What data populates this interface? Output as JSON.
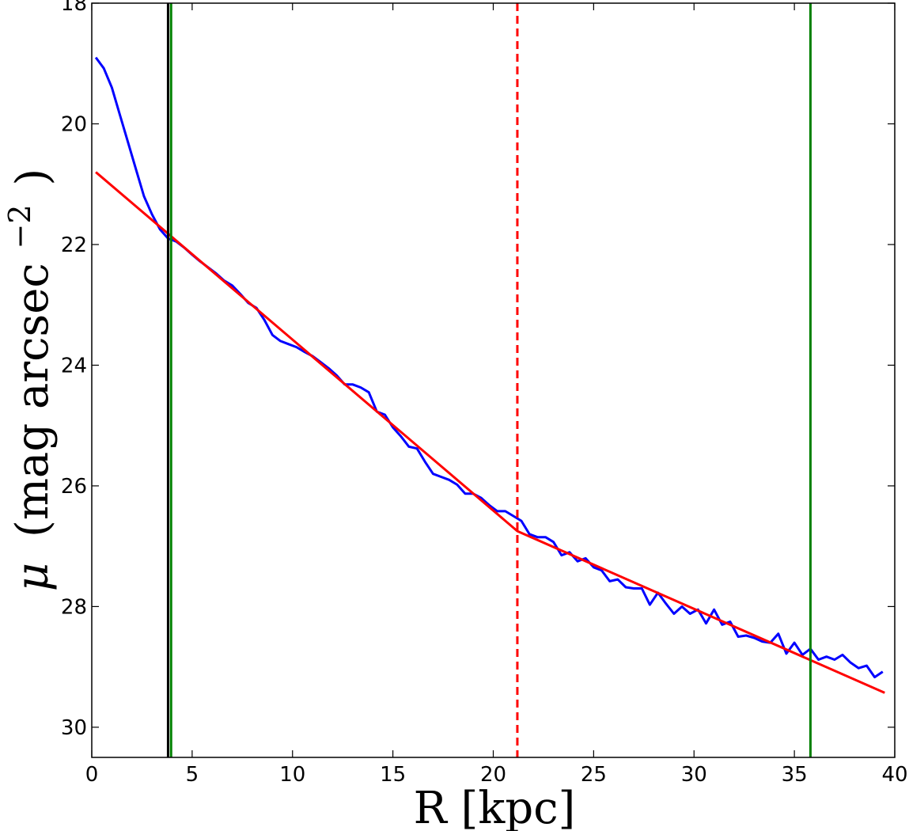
{
  "chart_data": {
    "type": "line",
    "xlabel": "R [kpc]",
    "ylabel": "μ (mag arcsec⁻²)",
    "ylabel_parts": {
      "symbol": "μ",
      "unit": "(mag arcsec",
      "exponent": "−2",
      "close": ")"
    },
    "xlim": [
      0,
      40
    ],
    "ylim": [
      30.5,
      18
    ],
    "y_inverted": true,
    "x_ticks": [
      0,
      5,
      10,
      15,
      20,
      25,
      30,
      35,
      40
    ],
    "y_ticks": [
      18,
      20,
      22,
      24,
      26,
      28,
      30
    ],
    "grid": false,
    "series": [
      {
        "color": "#0000ff",
        "x": [
          0.2,
          0.6,
          1.0,
          1.4,
          1.8,
          2.2,
          2.6,
          3.0,
          3.4,
          3.8,
          4.2,
          4.6,
          5.0,
          5.4,
          5.8,
          6.2,
          6.6,
          7.0,
          7.4,
          7.8,
          8.2,
          8.6,
          9.0,
          9.4,
          9.8,
          10.2,
          10.6,
          11.0,
          11.4,
          11.8,
          12.2,
          12.6,
          13.0,
          13.4,
          13.8,
          14.2,
          14.6,
          15.0,
          15.4,
          15.8,
          16.2,
          16.6,
          17.0,
          17.4,
          17.8,
          18.2,
          18.6,
          19.0,
          19.4,
          19.8,
          20.2,
          20.6,
          21.0,
          21.4,
          21.8,
          22.2,
          22.6,
          23.0,
          23.4,
          23.8,
          24.2,
          24.6,
          25.0,
          25.4,
          25.8,
          26.2,
          26.6,
          27.0,
          27.4,
          27.8,
          28.2,
          28.6,
          29.0,
          29.4,
          29.8,
          30.2,
          30.6,
          31.0,
          31.4,
          31.8,
          32.2,
          32.6,
          33.0,
          33.4,
          33.8,
          34.2,
          34.6,
          35.0,
          35.4,
          35.8,
          36.2,
          36.6,
          37.0,
          37.4,
          37.8,
          38.2,
          38.6,
          39.0,
          39.4
        ],
        "y": [
          18.9,
          19.08,
          19.4,
          19.85,
          20.3,
          20.75,
          21.2,
          21.5,
          21.75,
          21.9,
          21.95,
          22.05,
          22.17,
          22.28,
          22.38,
          22.48,
          22.6,
          22.68,
          22.82,
          22.97,
          23.05,
          23.25,
          23.5,
          23.6,
          23.65,
          23.7,
          23.78,
          23.85,
          23.95,
          24.05,
          24.17,
          24.32,
          24.32,
          24.37,
          24.45,
          24.77,
          24.82,
          25.03,
          25.18,
          25.35,
          25.38,
          25.6,
          25.8,
          25.85,
          25.9,
          25.98,
          26.13,
          26.13,
          26.2,
          26.32,
          26.42,
          26.42,
          26.5,
          26.58,
          26.8,
          26.85,
          26.85,
          26.93,
          27.15,
          27.1,
          27.25,
          27.2,
          27.35,
          27.4,
          27.58,
          27.55,
          27.68,
          27.7,
          27.7,
          27.97,
          27.77,
          27.95,
          28.12,
          28.0,
          28.12,
          28.05,
          28.28,
          28.05,
          28.3,
          28.25,
          28.5,
          28.48,
          28.52,
          28.58,
          28.6,
          28.45,
          28.78,
          28.6,
          28.8,
          28.7,
          28.88,
          28.83,
          28.88,
          28.8,
          28.93,
          29.02,
          28.98,
          29.17,
          29.08
        ]
      },
      {
        "color": "#ff0000",
        "x": [
          0.2,
          21.2,
          39.5
        ],
        "y": [
          20.8,
          26.75,
          29.43
        ]
      }
    ],
    "vertical_lines": [
      {
        "x": 3.8,
        "color": "#000000",
        "style": "solid"
      },
      {
        "x": 3.95,
        "color": "#008000",
        "style": "solid"
      },
      {
        "x": 21.2,
        "color": "#ff0000",
        "style": "dashed"
      },
      {
        "x": 35.8,
        "color": "#008000",
        "style": "solid"
      }
    ]
  }
}
